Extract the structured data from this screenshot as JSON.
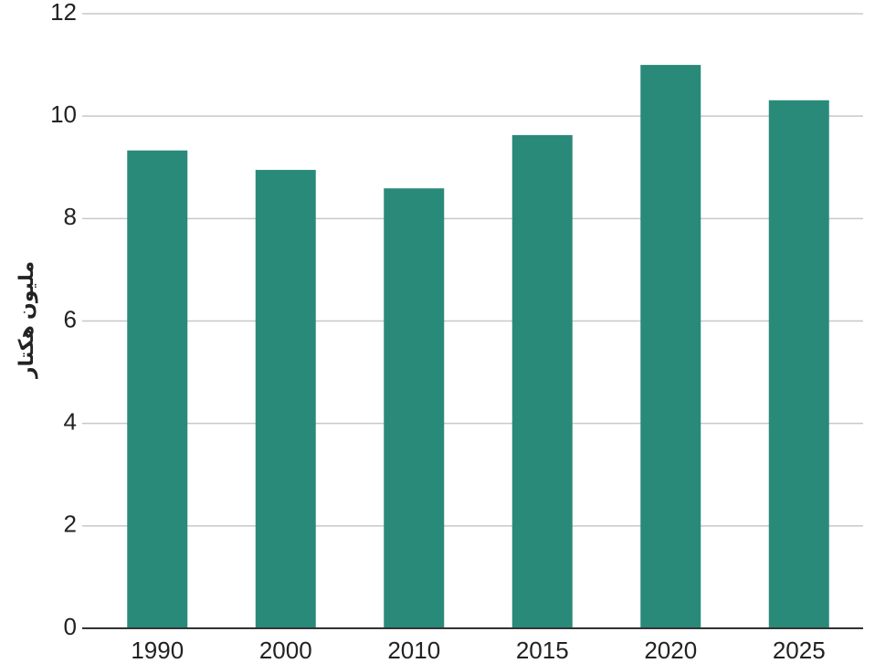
{
  "chart_data": {
    "type": "bar",
    "y_label": "ملیون هکتار",
    "categories": [
      "1990",
      "2000",
      "2010",
      "2015",
      "2020",
      "2025"
    ],
    "values": [
      9.33,
      8.95,
      8.59,
      9.63,
      11.0,
      10.31
    ],
    "color": "#2a8a7a",
    "ylim": [
      0,
      12
    ],
    "yticks": [
      0,
      2,
      4,
      6,
      8,
      10,
      12
    ],
    "grid": true
  }
}
